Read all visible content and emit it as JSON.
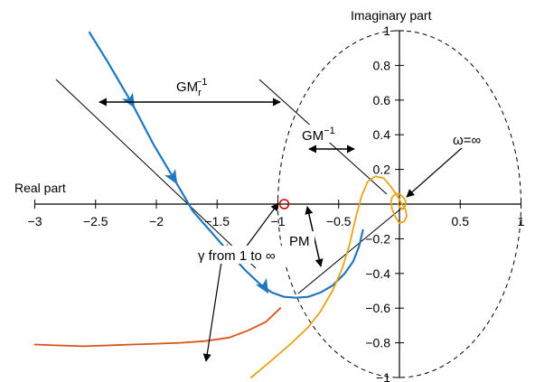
{
  "chart_data": {
    "type": "line",
    "xlabel": "Real part",
    "ylabel": "Imaginary part",
    "xlim": [
      -3,
      1
    ],
    "ylim": [
      -1,
      1
    ],
    "x_ticks": [
      {
        "value": -3,
        "label": "−3"
      },
      {
        "value": -2.5,
        "label": "−2.5"
      },
      {
        "value": -2,
        "label": "−2"
      },
      {
        "value": -1.5,
        "label": "−1.5"
      },
      {
        "value": -1,
        "label": "−1"
      },
      {
        "value": -0.5,
        "label": "−0.5"
      },
      {
        "value": 0.5,
        "label": "0.5"
      },
      {
        "value": 1,
        "label": "1"
      }
    ],
    "y_ticks": [
      {
        "value": 1,
        "label": "1"
      },
      {
        "value": 0.8,
        "label": "0.8"
      },
      {
        "value": 0.6,
        "label": "0.6"
      },
      {
        "value": 0.4,
        "label": "0.4"
      },
      {
        "value": 0.2,
        "label": "0.2"
      },
      {
        "value": -0.2,
        "label": "−0.2"
      },
      {
        "value": -0.4,
        "label": "−0.4"
      },
      {
        "value": -0.6,
        "label": "−0.6"
      },
      {
        "value": -0.8,
        "label": "−0.8"
      },
      {
        "value": -1,
        "label": "−1"
      }
    ],
    "critical_point": {
      "x": -1,
      "y": 0
    },
    "unit_circle": {
      "cx": 0,
      "cy": 0,
      "r": 1
    },
    "colors": {
      "gamma": "#1f77c0",
      "nyquist": "#e8a317",
      "lower": "#d95319",
      "axis": "#000000",
      "critical": "#d00000"
    },
    "series": [
      {
        "key": "gamma",
        "x": [
          -2.55,
          -2.4,
          -2.2,
          -2.02,
          -1.85,
          -1.7,
          -1.55,
          -1.4,
          -1.27,
          -1.15,
          -1.05,
          -0.95,
          -0.85,
          -0.75,
          -0.65,
          -0.55,
          -0.45,
          -0.38,
          -0.33,
          -0.3
        ],
        "y": [
          0.99,
          0.82,
          0.58,
          0.34,
          0.14,
          -0.04,
          -0.16,
          -0.28,
          -0.38,
          -0.46,
          -0.51,
          -0.535,
          -0.54,
          -0.535,
          -0.51,
          -0.47,
          -0.4,
          -0.33,
          -0.24,
          -0.15
        ]
      },
      {
        "key": "nyquist",
        "x": [
          -1.22,
          -1.05,
          -0.9,
          -0.75,
          -0.65,
          -0.55,
          -0.47,
          -0.41,
          -0.36,
          -0.31,
          -0.26,
          -0.2,
          -0.13,
          -0.07,
          -0.02,
          0.02,
          0.05,
          0.06,
          0.04,
          0.0,
          -0.03,
          -0.06,
          -0.07,
          -0.06,
          -0.03,
          0.0,
          0.03,
          0.05,
          0.05,
          0.03,
          0.0,
          -0.01
        ],
        "y": [
          -1.0,
          -0.9,
          -0.81,
          -0.71,
          -0.62,
          -0.5,
          -0.37,
          -0.23,
          -0.08,
          0.05,
          0.13,
          0.16,
          0.15,
          0.1,
          0.05,
          0.0,
          -0.03,
          -0.07,
          -0.1,
          -0.11,
          -0.08,
          -0.03,
          0.01,
          0.04,
          0.06,
          0.06,
          0.04,
          0.02,
          -0.01,
          -0.03,
          -0.02,
          0.0
        ]
      },
      {
        "key": "lower",
        "x": [
          -3.0,
          -2.8,
          -2.6,
          -2.4,
          -2.2,
          -2.0,
          -1.8,
          -1.6,
          -1.4,
          -1.25,
          -1.1,
          -0.98
        ],
        "y": [
          -0.81,
          -0.815,
          -0.82,
          -0.815,
          -0.81,
          -0.805,
          -0.8,
          -0.79,
          -0.77,
          -0.73,
          -0.68,
          -0.6
        ]
      }
    ],
    "arrow_points": [
      {
        "x": -2.2,
        "y": 0.58
      },
      {
        "x": -1.85,
        "y": 0.14
      },
      {
        "x": -1.42,
        "y": -0.29
      },
      {
        "x": -1.1,
        "y": -0.49
      }
    ],
    "annotations": {
      "gm_r_base": "GM",
      "gm_r_sub": "r",
      "gm_r_sup": "−1",
      "gm_base": "GM",
      "gm_sup": "−1",
      "omega": "ω=∞",
      "pm": "PM",
      "gamma": "γ from 1 to ∞"
    }
  }
}
